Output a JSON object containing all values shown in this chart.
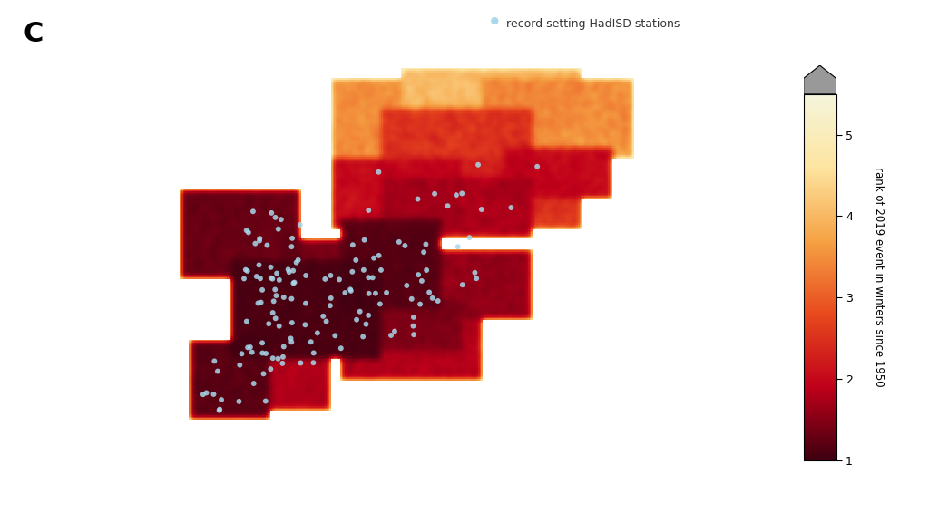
{
  "title_label": "C",
  "legend_label": "record setting HadISD stations",
  "colorbar_label": "rank of 2019 event in winters since 1950",
  "colorbar_ticks": [
    1,
    2,
    3,
    4,
    5
  ],
  "colorbar_colors": [
    "#3d0010",
    "#c0001a",
    "#e84a1e",
    "#f5a244",
    "#fde4a0",
    "#f5f5dc"
  ],
  "colorbar_vmin": 1,
  "colorbar_vmax": 5.5,
  "map_lon_min": -25,
  "map_lon_max": 45,
  "map_lat_min": 30,
  "map_lat_max": 72,
  "ocean_color": "#ffffff",
  "land_color": "#aaaaaa",
  "border_color": "#555555",
  "coast_color": "#000000",
  "background_color": "#ffffff",
  "point_color": "#a8d8ea",
  "point_size": 5,
  "fig_width": 10.24,
  "fig_height": 5.77
}
